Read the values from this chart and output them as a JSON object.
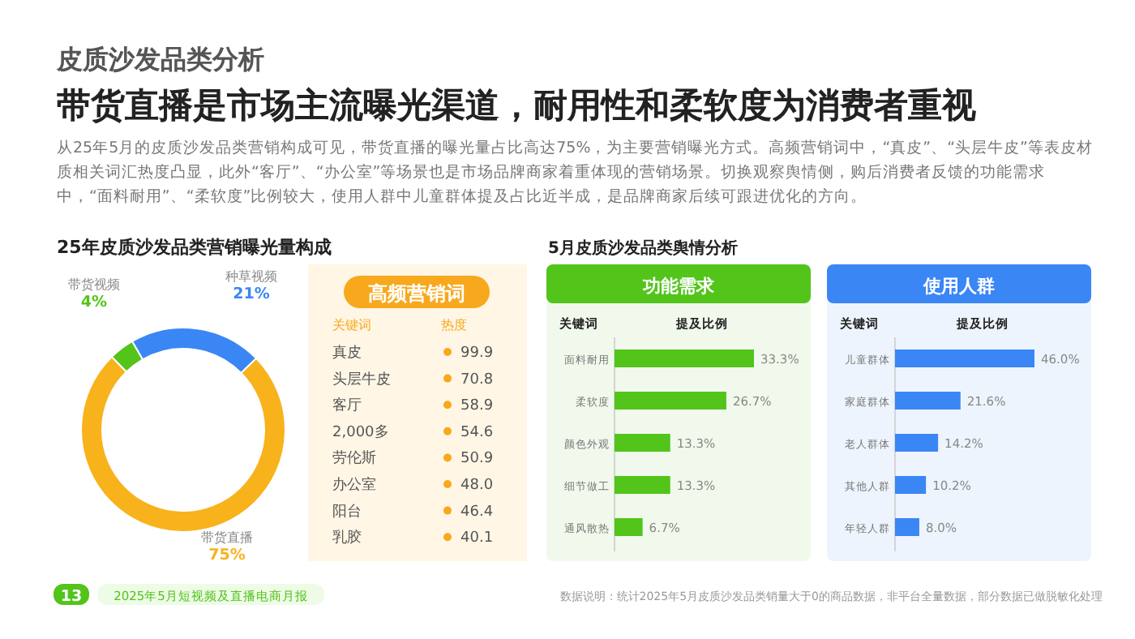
{
  "chart_data": [
    {
      "type": "other",
      "title": "皮质沙发品类分析",
      "subtitle": "带货直播是市场主流曝光渠道，耐用性和柔软度为消费者重视",
      "annotations": [
        "从25年5月的皮质沙发品类营销构成可见，带货直播的曝光量占比高达75%，为主要营销曝光方式。高频营销词中，“真皮”、“头层牛皮”等表皮材质相关词汇热度凸显，此外“客厅”、“办公室”等场景也是市场品牌商家着重体现的营销场景。切换观察舆情侧，购后消费者反馈的功能需求中，“面料耐用”、“柔软度”比例较大，使用人群中儿童群体提及占比近半成，是品牌商家后续可跟进优化的方向。",
        "13",
        "2025年5月短视频及直播电商月报",
        "数据说明：统计2025年5月皮质沙发品类销量大于0的商品数据，非平台全量数据，部分数据已做脱敏化处理"
      ]
    },
    {
      "type": "donut",
      "title": "25年皮质沙发品类营销曝光量构成",
      "categories": [
        "种草视频",
        "带货直播",
        "带货视频"
      ],
      "values": [
        21,
        75,
        4
      ],
      "colors": [
        "#3a86f5",
        "#f8b21c",
        "#52c41a"
      ],
      "value_labels": [
        "21%",
        "75%",
        "4%"
      ]
    },
    {
      "type": "other",
      "title": "高频营销词",
      "xlabel": "关键词",
      "ylabel": "热度",
      "categories": [
        "真皮",
        "头层牛皮",
        "客厅",
        "2,000多",
        "劳伦斯",
        "办公室",
        "阳台",
        "乳胶"
      ],
      "values": [
        99.9,
        70.8,
        58.9,
        54.6,
        50.9,
        48.0,
        46.4,
        40.1
      ],
      "value_labels": [
        "99.9",
        "70.8",
        "58.9",
        "54.6",
        "50.9",
        "48.0",
        "46.4",
        "40.1"
      ]
    },
    {
      "type": "bar",
      "orientation": "horizontal",
      "title": "5月皮质沙发品类舆情分析",
      "subtitle": "功能需求",
      "ylabel": "关键词",
      "xlabel": "提及比例",
      "categories": [
        "面料耐用",
        "柔软度",
        "颜色外观",
        "细节做工",
        "通风散热"
      ],
      "values": [
        33.3,
        26.7,
        13.3,
        13.3,
        6.7
      ],
      "value_labels": [
        "33.3%",
        "26.7%",
        "13.3%",
        "13.3%",
        "6.7%"
      ],
      "color": "#52c41a"
    },
    {
      "type": "bar",
      "orientation": "horizontal",
      "title": "使用人群",
      "ylabel": "关键词",
      "xlabel": "提及比例",
      "categories": [
        "儿童群体",
        "家庭群体",
        "老人群体",
        "其他人群",
        "年轻人群"
      ],
      "values": [
        46.0,
        21.6,
        14.2,
        10.2,
        8.0
      ],
      "value_labels": [
        "46.0%",
        "21.6%",
        "14.2%",
        "10.2%",
        "8.0%"
      ],
      "color": "#3a86f5"
    }
  ]
}
